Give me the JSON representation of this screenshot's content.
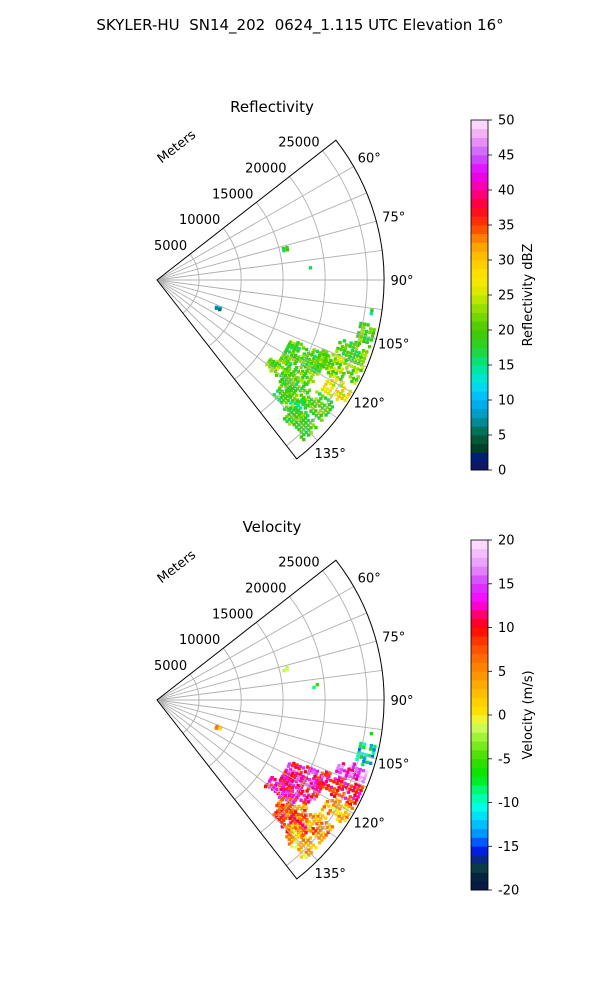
{
  "figure": {
    "title": "SKYLER-HU  SN14_202  0624_1.115 UTC Elevation 16°"
  },
  "chart_data": [
    {
      "type": "heatmap",
      "subtype": "polar-sector (radar PPI)",
      "title": "Reflectivity",
      "radial_label": "Meters",
      "range_ticks": [
        5000,
        10000,
        15000,
        20000,
        25000
      ],
      "rlim": [
        0,
        27000
      ],
      "azimuth_ticks": [
        "60°",
        "75°",
        "90°",
        "105°",
        "120°",
        "135°"
      ],
      "azimuth_range_deg": [
        52,
        142
      ],
      "grid": true,
      "colorbar": {
        "label": "Reflectivity dBZ",
        "min": 0,
        "max": 50,
        "ticks": [
          0,
          5,
          10,
          15,
          20,
          25,
          30,
          35,
          40,
          45,
          50
        ],
        "colormap": "pyart_NWSRef"
      },
      "echo_regions": [
        {
          "az": [
            102,
            108
          ],
          "r": [
            24800,
            26600
          ],
          "value": 20
        },
        {
          "az": [
            108,
            113
          ],
          "r": [
            23000,
            26600
          ],
          "value": 20
        },
        {
          "az": [
            113,
            119
          ],
          "r": [
            21500,
            26600
          ],
          "value": 22
        },
        {
          "az": [
            119,
            124
          ],
          "r": [
            23600,
            26600
          ],
          "value": 27
        },
        {
          "az": [
            114,
            125
          ],
          "r": [
            17500,
            22500
          ],
          "value": 20
        },
        {
          "az": [
            125,
            132
          ],
          "r": [
            19000,
            26000
          ],
          "value": 20
        },
        {
          "az": [
            129,
            136
          ],
          "r": [
            19500,
            24000
          ],
          "value": 18
        },
        {
          "az": [
            132,
            138
          ],
          "r": [
            22000,
            26000
          ],
          "value": 20
        },
        {
          "az": [
            124,
            129
          ],
          "r": [
            16500,
            20500
          ],
          "value": 21
        },
        {
          "az": [
            76,
            77.5
          ],
          "r": [
            15500,
            16200
          ],
          "value": 20
        },
        {
          "az": [
            84.5,
            85.5
          ],
          "r": [
            18300,
            19200
          ],
          "value": 18
        },
        {
          "az": [
            98,
            99
          ],
          "r": [
            25800,
            26200
          ],
          "value": 18
        },
        {
          "az": [
            113.5,
            115.5
          ],
          "r": [
            7800,
            8600
          ],
          "value": 10
        }
      ]
    },
    {
      "type": "heatmap",
      "subtype": "polar-sector (radar PPI)",
      "title": "Velocity",
      "radial_label": "Meters",
      "range_ticks": [
        5000,
        10000,
        15000,
        20000,
        25000
      ],
      "rlim": [
        0,
        27000
      ],
      "azimuth_ticks": [
        "60°",
        "75°",
        "90°",
        "105°",
        "120°",
        "135°"
      ],
      "azimuth_range_deg": [
        52,
        142
      ],
      "grid": true,
      "colorbar": {
        "label": "Velocity (m/s)",
        "min": -20,
        "max": 20,
        "ticks": [
          -20,
          -15,
          -10,
          -5,
          0,
          5,
          10,
          15,
          20
        ],
        "colormap": "pyart_BuDRd18"
      },
      "echo_regions": [
        {
          "az": [
            102,
            108
          ],
          "r": [
            24800,
            26600
          ],
          "value": -11
        },
        {
          "az": [
            108,
            113
          ],
          "r": [
            23000,
            26600
          ],
          "value": 15
        },
        {
          "az": [
            113,
            119
          ],
          "r": [
            21500,
            26600
          ],
          "value": 10
        },
        {
          "az": [
            119,
            124
          ],
          "r": [
            23600,
            26600
          ],
          "value": 3
        },
        {
          "az": [
            114,
            125
          ],
          "r": [
            17500,
            22500
          ],
          "value": 12
        },
        {
          "az": [
            125,
            132
          ],
          "r": [
            19000,
            26000
          ],
          "value": 5
        },
        {
          "az": [
            129,
            136
          ],
          "r": [
            19500,
            24000
          ],
          "value": 8
        },
        {
          "az": [
            132,
            138
          ],
          "r": [
            22000,
            26000
          ],
          "value": 3
        },
        {
          "az": [
            124,
            129
          ],
          "r": [
            16500,
            20500
          ],
          "value": 11
        },
        {
          "az": [
            76,
            77.5
          ],
          "r": [
            15500,
            16200
          ],
          "value": 1
        },
        {
          "az": [
            84.5,
            85.5
          ],
          "r": [
            18300,
            19200
          ],
          "value": -5
        },
        {
          "az": [
            98,
            99
          ],
          "r": [
            25800,
            26200
          ],
          "value": -8
        },
        {
          "az": [
            113.5,
            115.5
          ],
          "r": [
            7800,
            8600
          ],
          "value": 4
        }
      ]
    }
  ]
}
